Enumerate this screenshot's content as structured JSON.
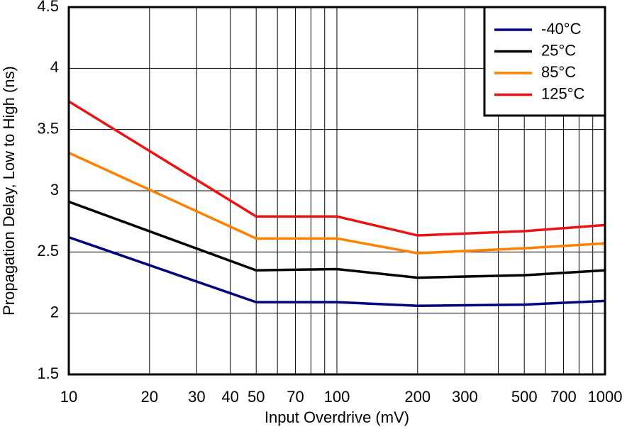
{
  "chart_data": {
    "type": "line",
    "xlabel": "Input Overdrive (mV)",
    "ylabel": "Propagation Delay, Low to High (ns)",
    "x": [
      10,
      50,
      100,
      200,
      500,
      1000
    ],
    "series": [
      {
        "name": "-40°C",
        "color": "#000080",
        "values": [
          2.62,
          2.09,
          2.09,
          2.06,
          2.07,
          2.1
        ]
      },
      {
        "name": "25°C",
        "color": "#000000",
        "values": [
          2.91,
          2.35,
          2.36,
          2.29,
          2.31,
          2.35
        ]
      },
      {
        "name": "85°C",
        "color": "#ff8000",
        "values": [
          3.31,
          2.61,
          2.61,
          2.49,
          2.53,
          2.57
        ]
      },
      {
        "name": "125°C",
        "color": "#ee1111",
        "values": [
          3.73,
          2.79,
          2.79,
          2.635,
          2.67,
          2.72
        ]
      }
    ],
    "xscale": "log",
    "xlim": [
      10,
      1000
    ],
    "xticks": [
      10,
      20,
      30,
      40,
      50,
      70,
      100,
      200,
      300,
      500,
      700,
      1000
    ],
    "minor_xticks": [
      60,
      80,
      90,
      400,
      600,
      800,
      900
    ],
    "ylim": [
      1.5,
      4.5
    ],
    "yticks": [
      1.5,
      2,
      2.5,
      3,
      3.5,
      4,
      4.5
    ],
    "grid": true,
    "legend": "upper-right"
  }
}
